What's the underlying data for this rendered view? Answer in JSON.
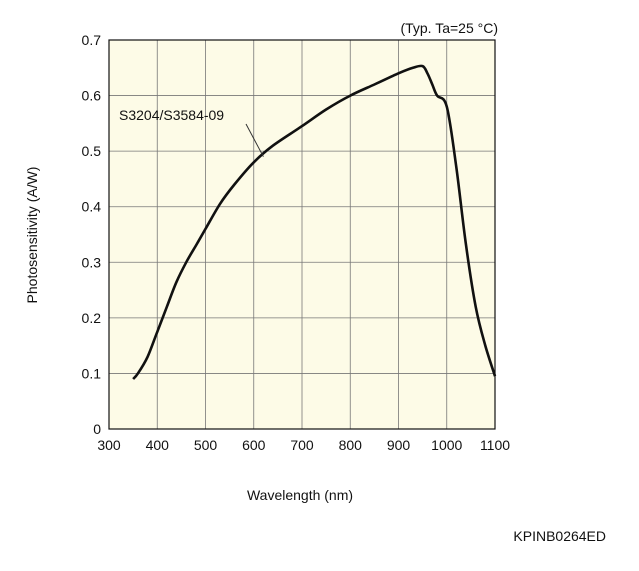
{
  "chart_data": {
    "type": "line",
    "title": "",
    "condition_note": "(Typ. Ta=25 °C)",
    "xlabel": "Wavelength (nm)",
    "ylabel": "Photosensitivity (A/W)",
    "xlim": [
      300,
      1100
    ],
    "ylim": [
      0,
      0.7
    ],
    "x_ticks": [
      "300",
      "400",
      "500",
      "600",
      "700",
      "800",
      "900",
      "1000",
      "1100"
    ],
    "y_ticks": [
      "0",
      "0.1",
      "0.2",
      "0.3",
      "0.4",
      "0.5",
      "0.6",
      "0.7"
    ],
    "grid": true,
    "plot_background": "#fdfbe7",
    "line_color": "#111111",
    "series": [
      {
        "name": "S3204/S3584-09",
        "x": [
          350,
          360,
          380,
          400,
          420,
          440,
          460,
          480,
          500,
          530,
          560,
          600,
          640,
          700,
          750,
          800,
          850,
          900,
          930,
          950,
          960,
          970,
          980,
          1000,
          1020,
          1040,
          1060,
          1080,
          1100
        ],
        "y": [
          0.09,
          0.1,
          0.13,
          0.175,
          0.22,
          0.265,
          0.3,
          0.33,
          0.36,
          0.405,
          0.44,
          0.48,
          0.51,
          0.545,
          0.575,
          0.6,
          0.62,
          0.64,
          0.65,
          0.653,
          0.64,
          0.62,
          0.6,
          0.58,
          0.47,
          0.33,
          0.22,
          0.15,
          0.095
        ]
      }
    ],
    "annotation": {
      "text": "S3204/S3584-09",
      "points_to": [
        620,
        0.49
      ]
    }
  },
  "figure_id": "KPINB0264ED"
}
